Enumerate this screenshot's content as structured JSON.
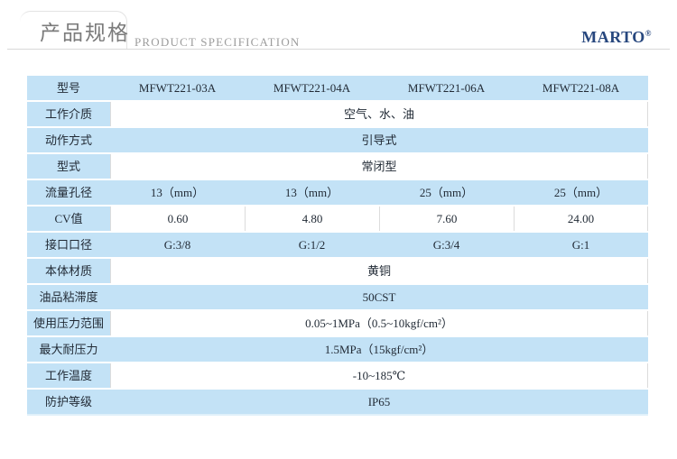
{
  "header": {
    "title": "产品规格",
    "subtitle": "PRODUCT SPECIFICATION",
    "brand": "MARTO",
    "brand_mark": "®"
  },
  "table": {
    "rows": [
      {
        "label": "型号",
        "highlight": true,
        "values": [
          "MFWT221-03A",
          "MFWT221-04A",
          "MFWT221-06A",
          "MFWT221-08A"
        ]
      },
      {
        "label": "工作介质",
        "highlight": false,
        "value": "空气、水、油"
      },
      {
        "label": "动作方式",
        "highlight": true,
        "value": "引导式"
      },
      {
        "label": "型式",
        "highlight": false,
        "value": "常闭型"
      },
      {
        "label": "流量孔径",
        "highlight": true,
        "values": [
          "13（mm）",
          "13（mm）",
          "25（mm）",
          "25（mm）"
        ]
      },
      {
        "label": "CV值",
        "highlight": false,
        "values": [
          "0.60",
          "4.80",
          "7.60",
          "24.00"
        ]
      },
      {
        "label": "接口口径",
        "highlight": true,
        "values": [
          "G:3/8",
          "G:1/2",
          "G:3/4",
          "G:1"
        ]
      },
      {
        "label": "本体材质",
        "highlight": false,
        "value": "黄铜"
      },
      {
        "label": "油品粘滞度",
        "highlight": true,
        "value": "50CST"
      },
      {
        "label": "使用压力范围",
        "highlight": false,
        "value": "0.05~1MPa（0.5~10kgf/cm²）"
      },
      {
        "label": "最大耐压力",
        "highlight": true,
        "value": "1.5MPa（15kgf/cm²）"
      },
      {
        "label": "工作温度",
        "highlight": false,
        "value": "-10~185℃"
      },
      {
        "label": "防护等级",
        "highlight": true,
        "value": "IP65"
      }
    ]
  },
  "colors": {
    "highlight_blue": "#c3e2f6",
    "brand_navy": "#27477e",
    "header_line_gray": "#d8d8d8",
    "text_dark": "#222b36",
    "title_gray": "#7b7b7b",
    "grid_gray": "#dcdcdc"
  }
}
